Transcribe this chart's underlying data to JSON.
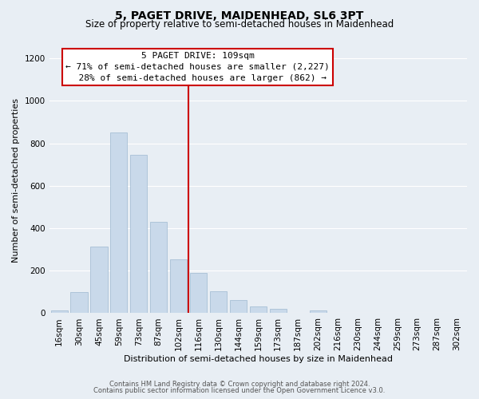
{
  "title": "5, PAGET DRIVE, MAIDENHEAD, SL6 3PT",
  "subtitle": "Size of property relative to semi-detached houses in Maidenhead",
  "xlabel": "Distribution of semi-detached houses by size in Maidenhead",
  "ylabel": "Number of semi-detached properties",
  "footer_line1": "Contains HM Land Registry data © Crown copyright and database right 2024.",
  "footer_line2": "Contains public sector information licensed under the Open Government Licence v3.0.",
  "bar_labels": [
    "16sqm",
    "30sqm",
    "45sqm",
    "59sqm",
    "73sqm",
    "87sqm",
    "102sqm",
    "116sqm",
    "130sqm",
    "144sqm",
    "159sqm",
    "173sqm",
    "187sqm",
    "202sqm",
    "216sqm",
    "230sqm",
    "244sqm",
    "259sqm",
    "273sqm",
    "287sqm",
    "302sqm"
  ],
  "bar_values": [
    14,
    100,
    315,
    850,
    745,
    430,
    255,
    190,
    105,
    62,
    32,
    20,
    0,
    14,
    0,
    0,
    0,
    0,
    0,
    0,
    0
  ],
  "bar_color": "#c9d9ea",
  "bar_edge_color": "#a8c0d6",
  "vline_color": "#cc0000",
  "annotation_title": "5 PAGET DRIVE: 109sqm",
  "annotation_line1": "← 71% of semi-detached houses are smaller (2,227)",
  "annotation_line2": "  28% of semi-detached houses are larger (862) →",
  "annotation_box_facecolor": "#ffffff",
  "annotation_box_edgecolor": "#cc0000",
  "ylim": [
    0,
    1250
  ],
  "yticks": [
    0,
    200,
    400,
    600,
    800,
    1000,
    1200
  ],
  "background_color": "#e8eef4",
  "grid_color": "#ffffff",
  "title_fontsize": 10,
  "subtitle_fontsize": 8.5,
  "axis_label_fontsize": 8,
  "tick_fontsize": 7.5,
  "annotation_fontsize": 8,
  "footer_fontsize": 6,
  "footer_color": "#555555"
}
